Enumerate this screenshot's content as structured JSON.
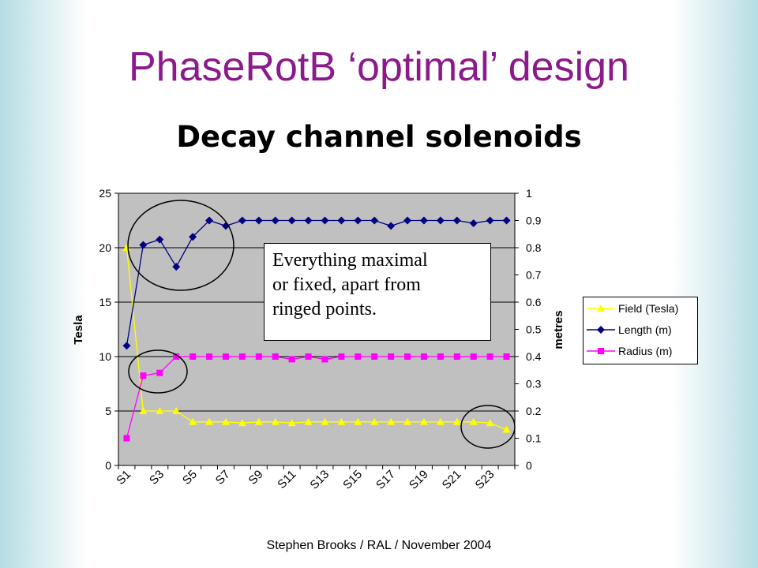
{
  "slide": {
    "title": "PhaseRotB ‘optimal’ design",
    "footer": "Stephen Brooks / RAL / November 2004"
  },
  "annotation": {
    "lines": [
      "Everything maximal",
      "or fixed, apart from",
      "ringed points."
    ]
  },
  "colors": {
    "plot_area": "#c0c0c0",
    "field": "#ffff00",
    "length": "#000080",
    "radius": "#ff00ff",
    "title": "#8b1a8b"
  },
  "chart_data": {
    "type": "line",
    "title": "Decay channel solenoids",
    "xlabel": "",
    "ylabel": "Tesla",
    "y2label": "metres",
    "ylim": [
      0,
      25
    ],
    "y2lim": [
      0,
      1
    ],
    "yticks": [
      "0",
      "5",
      "10",
      "15",
      "20",
      "25"
    ],
    "y2ticks": [
      "0",
      "0.1",
      "0.2",
      "0.3",
      "0.4",
      "0.5",
      "0.6",
      "0.7",
      "0.8",
      "0.9",
      "1"
    ],
    "categories": [
      "S1",
      "S2",
      "S3",
      "S4",
      "S5",
      "S6",
      "S7",
      "S8",
      "S9",
      "S10",
      "S11",
      "S12",
      "S13",
      "S14",
      "S15",
      "S16",
      "S17",
      "S18",
      "S19",
      "S20",
      "S21",
      "S22",
      "S23",
      "S24"
    ],
    "x_tick_labels": [
      "S1",
      "S3",
      "S5",
      "S7",
      "S9",
      "S11",
      "S13",
      "S15",
      "S17",
      "S19",
      "S21",
      "S23"
    ],
    "grid": true,
    "legend_position": "right",
    "series": [
      {
        "name": "Field (Tesla)",
        "axis": "left",
        "marker": "triangle",
        "values": [
          20,
          5,
          5,
          5,
          4,
          4,
          4,
          3.9,
          4,
          4,
          3.9,
          4,
          4,
          4,
          4,
          4,
          4,
          4,
          4,
          4,
          4,
          4,
          3.9,
          3.3
        ]
      },
      {
        "name": "Length (m)",
        "axis": "right",
        "marker": "diamond",
        "values": [
          0.44,
          0.81,
          0.83,
          0.73,
          0.84,
          0.9,
          0.88,
          0.9,
          0.9,
          0.9,
          0.9,
          0.9,
          0.9,
          0.9,
          0.9,
          0.9,
          0.88,
          0.9,
          0.9,
          0.9,
          0.9,
          0.89,
          0.9,
          0.9
        ]
      },
      {
        "name": "Radius (m)",
        "axis": "right",
        "marker": "square",
        "values": [
          0.1,
          0.33,
          0.34,
          0.4,
          0.4,
          0.4,
          0.4,
          0.4,
          0.4,
          0.4,
          0.39,
          0.4,
          0.39,
          0.4,
          0.4,
          0.4,
          0.4,
          0.4,
          0.4,
          0.4,
          0.4,
          0.4,
          0.4,
          0.4
        ]
      }
    ]
  }
}
